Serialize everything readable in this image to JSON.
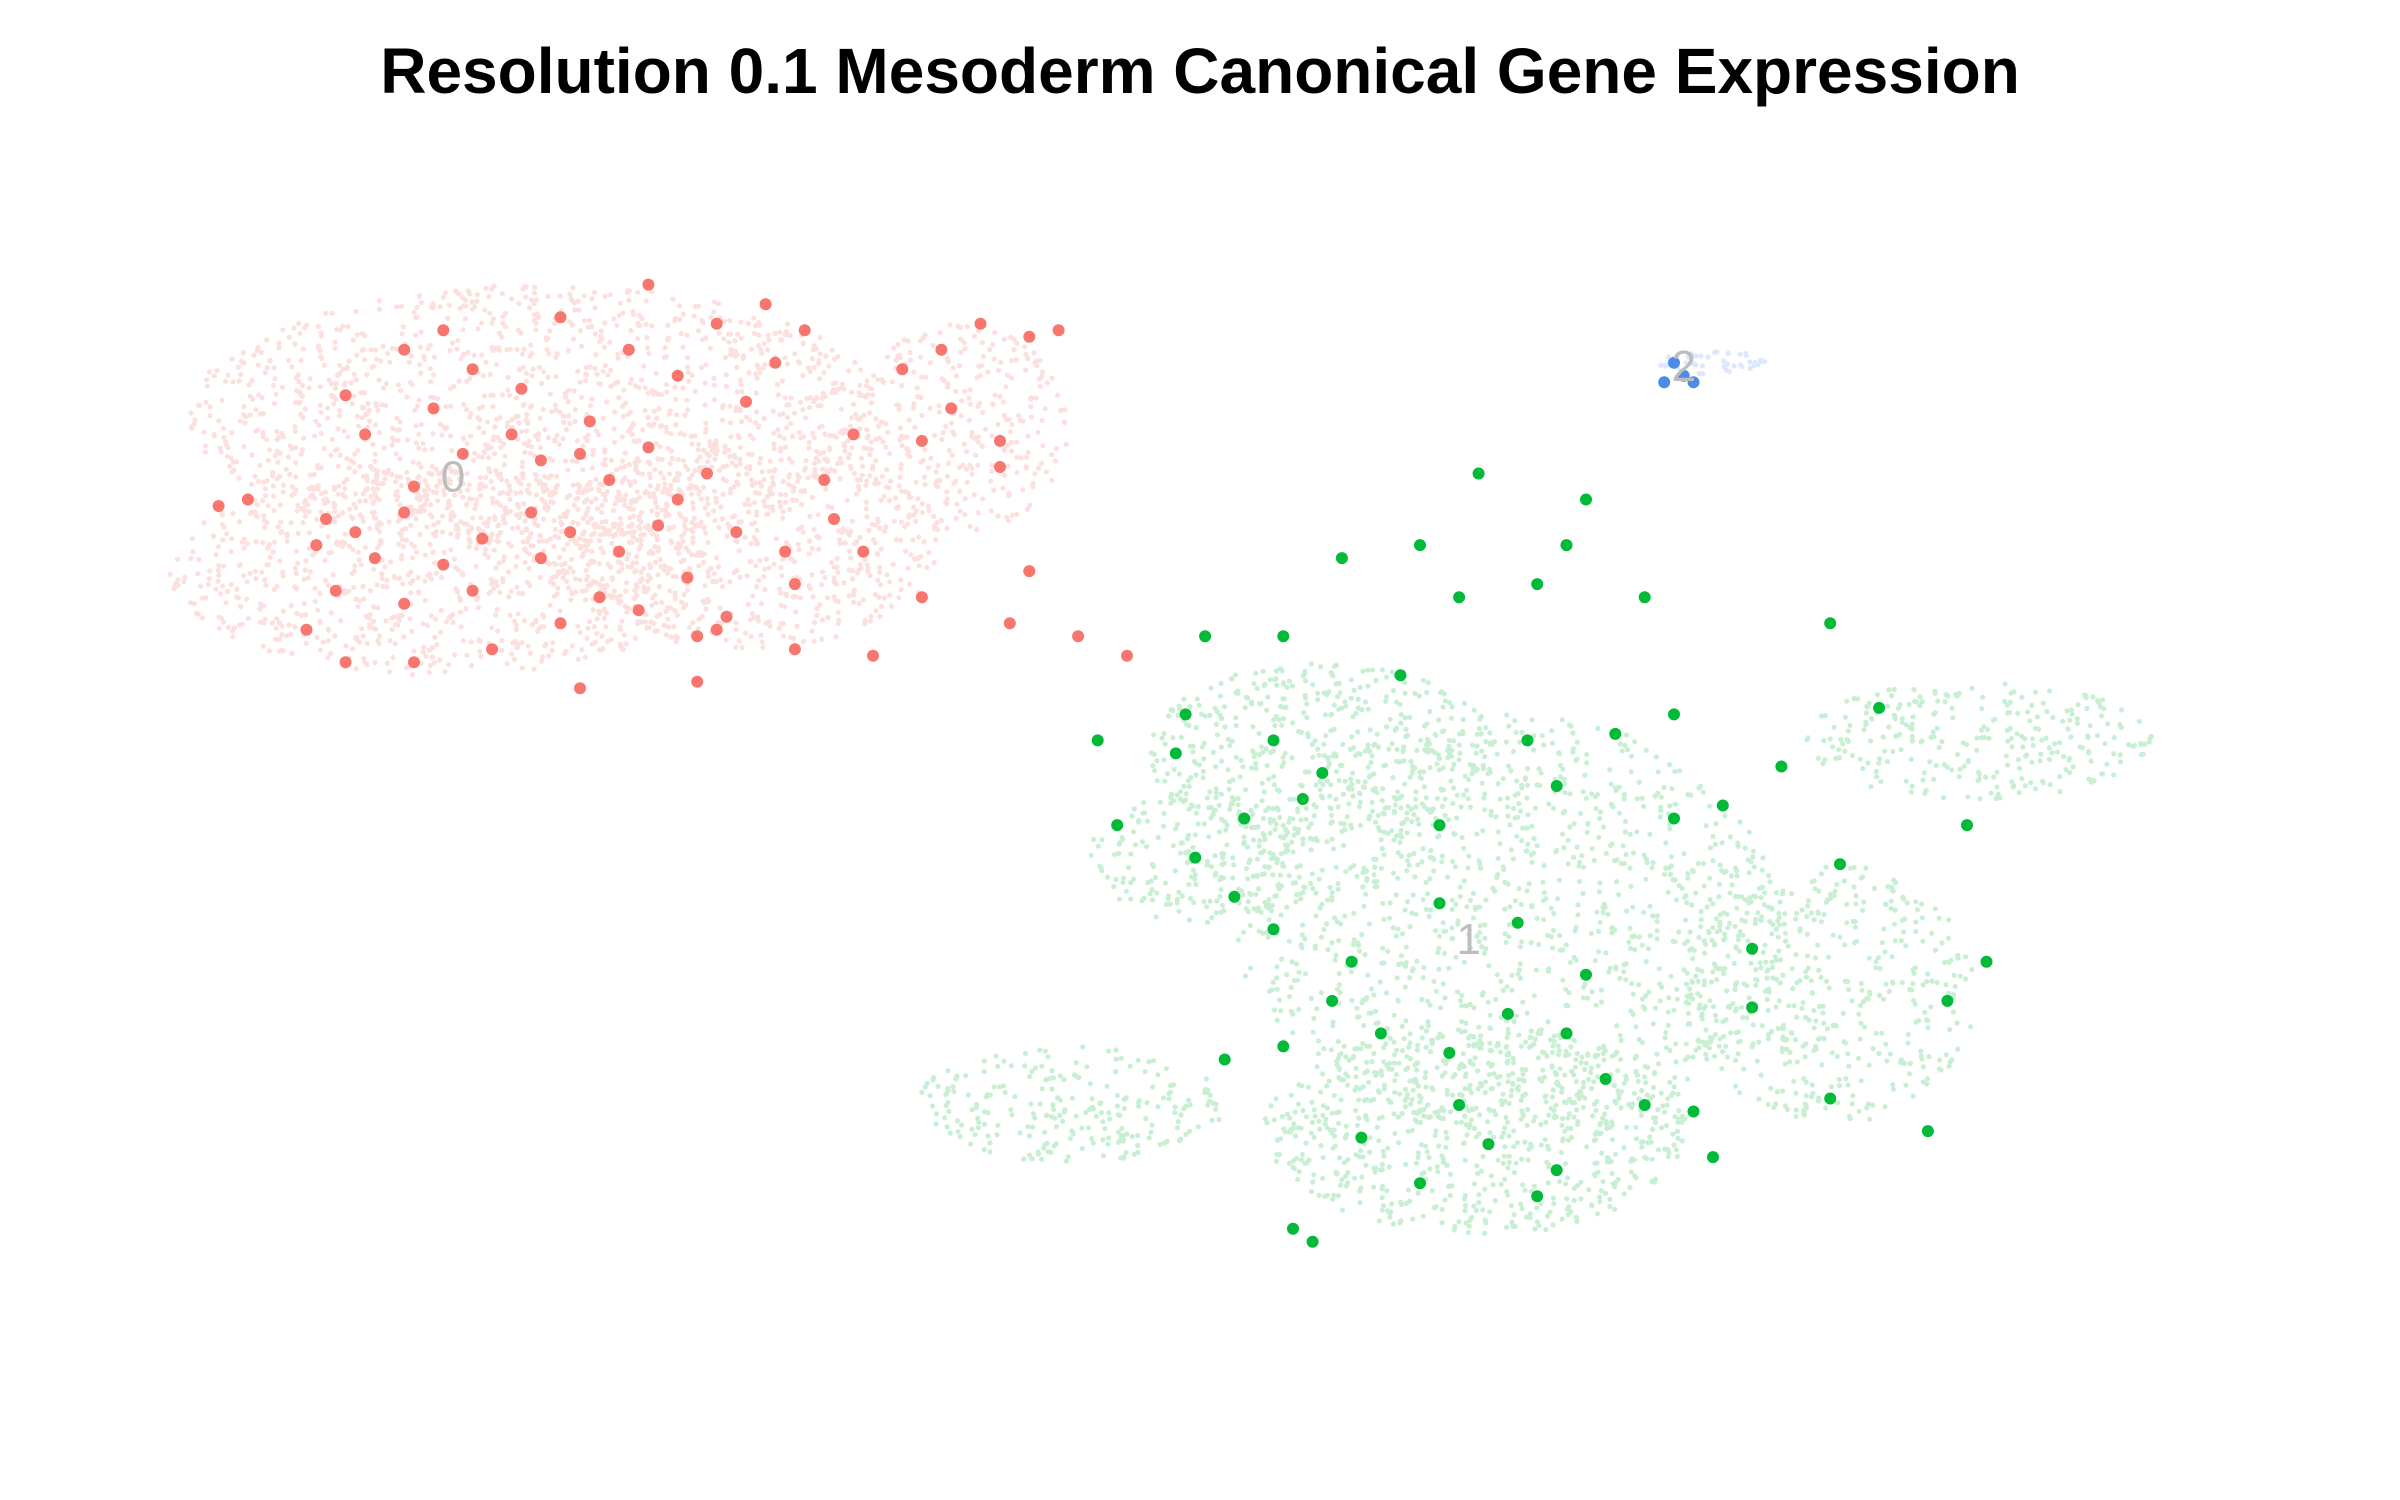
{
  "chart_data": {
    "type": "scatter",
    "title": "Resolution 0.1 Mesoderm Canonical Gene Expression",
    "xlabel": "",
    "ylabel": "",
    "grid": false,
    "legend": "none",
    "clusters": [
      {
        "label": "0",
        "color": "#F8766D",
        "background_color": "#FBE0DD",
        "center": [
          -4.5,
          6.6
        ],
        "highlighted": [
          [
            -6.9,
            6.2
          ],
          [
            -6.6,
            6.3
          ],
          [
            -5.8,
            6.0
          ],
          [
            -5.0,
            6.1
          ],
          [
            -4.2,
            5.7
          ],
          [
            -3.6,
            5.4
          ],
          [
            -2.8,
            5.5
          ],
          [
            -2.2,
            6.3
          ],
          [
            -5.4,
            7.3
          ],
          [
            -4.7,
            7.7
          ],
          [
            -3.9,
            7.3
          ],
          [
            -3.1,
            7.5
          ],
          [
            -2.5,
            7.1
          ],
          [
            -1.9,
            6.7
          ],
          [
            -1.6,
            5.8
          ],
          [
            -5.7,
            4.9
          ],
          [
            -5.0,
            4.7
          ],
          [
            -4.6,
            5.3
          ],
          [
            -3.4,
            4.4
          ],
          [
            -2.6,
            4.6
          ],
          [
            -1.7,
            4.5
          ],
          [
            -5.9,
            5.6
          ],
          [
            -4.3,
            4.9
          ],
          [
            -3.0,
            4.8
          ],
          [
            -2.1,
            5.1
          ],
          [
            -1.1,
            5.5
          ],
          [
            -0.6,
            6.0
          ],
          [
            -0.4,
            7.3
          ],
          [
            0.1,
            8.3
          ],
          [
            -0.9,
            8.9
          ],
          [
            -1.8,
            9.0
          ],
          [
            -2.7,
            8.6
          ],
          [
            -3.4,
            9.1
          ],
          [
            -2.2,
            8.2
          ],
          [
            -1.5,
            7.8
          ],
          [
            -4.3,
            8.3
          ],
          [
            -5.0,
            8.6
          ],
          [
            -5.6,
            7.9
          ],
          [
            -3.8,
            8.0
          ],
          [
            -1.2,
            8.4
          ],
          [
            -2.9,
            6.6
          ],
          [
            -3.7,
            6.1
          ],
          [
            -4.9,
            6.5
          ],
          [
            -5.3,
            5.4
          ],
          [
            -1.0,
            5.0
          ],
          [
            -0.3,
            5.5
          ],
          [
            -2.4,
            5.9
          ],
          [
            -3.2,
            7.0
          ],
          [
            -0.7,
            6.6
          ],
          [
            0.5,
            8.6
          ],
          [
            0.9,
            9.0
          ],
          [
            1.4,
            8.8
          ],
          [
            1.7,
            8.9
          ],
          [
            0.3,
            7.2
          ],
          [
            0.6,
            7.7
          ],
          [
            1.1,
            7.2
          ],
          [
            -1.3,
            9.3
          ],
          [
            -2.5,
            9.6
          ],
          [
            -4.6,
            8.9
          ],
          [
            -3.3,
            5.8
          ],
          [
            -1.8,
            4.3
          ],
          [
            -4.1,
            4.0
          ],
          [
            -2.0,
            4.2
          ],
          [
            -3.6,
            6.9
          ],
          [
            -4.4,
            7.0
          ],
          [
            -5.5,
            5.8
          ],
          [
            -6.0,
            4.3
          ],
          [
            -5.6,
            3.8
          ],
          [
            -1.0,
            4.0
          ],
          [
            1.1,
            6.8
          ],
          [
            1.4,
            5.2
          ],
          [
            1.2,
            4.4
          ],
          [
            -0.2,
            3.9
          ],
          [
            0.3,
            4.8
          ],
          [
            -2.0,
            3.5
          ],
          [
            -4.9,
            3.8
          ],
          [
            -3.2,
            3.4
          ],
          [
            2.4,
            3.9
          ],
          [
            1.9,
            4.2
          ]
        ]
      },
      {
        "label": "1",
        "color": "#00BA38",
        "background_color": "#C9EFD3",
        "center": [
          5.9,
          -0.5
        ],
        "highlighted": [
          [
            3.0,
            3.0
          ],
          [
            4.0,
            4.2
          ],
          [
            4.6,
            5.4
          ],
          [
            5.8,
            4.8
          ],
          [
            6.6,
            5.0
          ],
          [
            7.1,
            6.3
          ],
          [
            3.2,
            4.2
          ],
          [
            3.9,
            2.6
          ],
          [
            4.2,
            1.7
          ],
          [
            2.9,
            2.4
          ],
          [
            2.1,
            2.6
          ],
          [
            2.3,
            1.3
          ],
          [
            3.6,
            1.4
          ],
          [
            3.1,
            0.8
          ],
          [
            3.9,
            -0.3
          ],
          [
            4.5,
            -1.4
          ],
          [
            5.0,
            -1.9
          ],
          [
            5.7,
            -2.2
          ],
          [
            6.1,
            -3.6
          ],
          [
            6.8,
            -4.0
          ],
          [
            5.4,
            -4.2
          ],
          [
            4.8,
            -3.5
          ],
          [
            4.0,
            -2.1
          ],
          [
            6.3,
            -1.6
          ],
          [
            6.9,
            -1.9
          ],
          [
            7.7,
            -3.0
          ],
          [
            8.4,
            -3.8
          ],
          [
            9.6,
            -2.9
          ],
          [
            10.6,
            -3.4
          ],
          [
            10.8,
            -1.4
          ],
          [
            11.2,
            -0.8
          ],
          [
            11.0,
            1.3
          ],
          [
            9.7,
            0.7
          ],
          [
            8.0,
            1.4
          ],
          [
            6.8,
            1.9
          ],
          [
            5.6,
            1.3
          ],
          [
            7.4,
            2.7
          ],
          [
            8.0,
            3.0
          ],
          [
            8.5,
            1.6
          ],
          [
            7.1,
            -1.0
          ],
          [
            5.6,
            0.1
          ],
          [
            3.5,
            0.2
          ],
          [
            4.7,
            -0.8
          ],
          [
            6.4,
            -0.2
          ],
          [
            8.8,
            -1.5
          ],
          [
            9.6,
            4.4
          ],
          [
            10.1,
            3.1
          ],
          [
            5.4,
            5.6
          ],
          [
            6.9,
            5.6
          ],
          [
            7.7,
            4.8
          ],
          [
            5.2,
            3.6
          ],
          [
            6.5,
            2.6
          ],
          [
            4.4,
            2.1
          ],
          [
            8.2,
            -3.1
          ],
          [
            6.6,
            -4.4
          ],
          [
            5.8,
            -3.0
          ],
          [
            7.3,
            -2.6
          ],
          [
            4.1,
            -4.9
          ],
          [
            4.3,
            -5.1
          ],
          [
            3.4,
            -2.3
          ],
          [
            9.1,
            2.2
          ],
          [
            8.8,
            -0.6
          ],
          [
            6.0,
            6.7
          ]
        ]
      },
      {
        "label": "2",
        "color": "#4C8BE8",
        "background_color": "#DCE8FB",
        "center": [
          8.1,
          8.3
        ],
        "highlighted": [
          [
            7.9,
            8.1
          ],
          [
            8.1,
            8.2
          ],
          [
            8.0,
            8.4
          ],
          [
            8.2,
            8.1
          ]
        ]
      }
    ],
    "xlim": [
      -7.5,
      14.0
    ],
    "ylim": [
      -7.3,
      10.9
    ]
  }
}
